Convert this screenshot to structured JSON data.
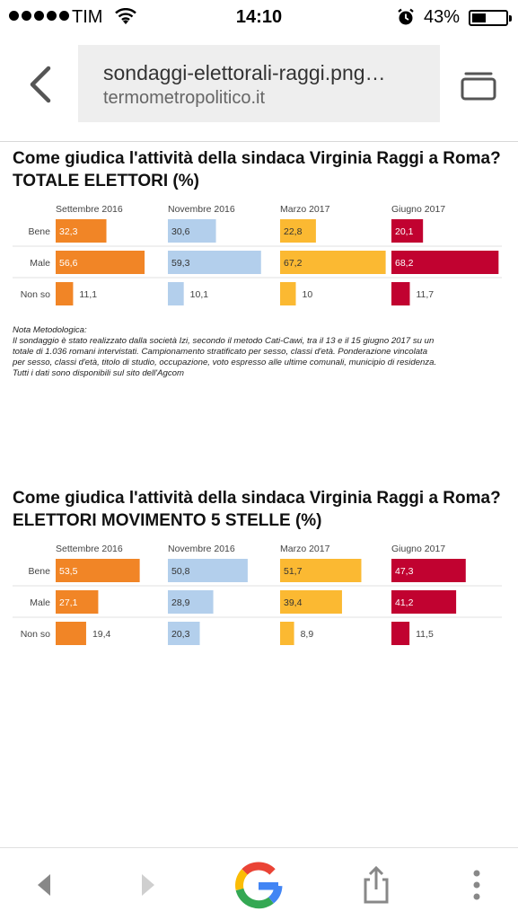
{
  "status_bar": {
    "carrier": "TIM",
    "time": "14:10",
    "battery": "43%",
    "battery_level": 0.43
  },
  "browser": {
    "url": "sondaggi-elettorali-raggi.png…",
    "host": "termometropolitico.it"
  },
  "chart_data": [
    {
      "type": "bar",
      "title": "Come giudica l'attività della sindaca Virginia Raggi a Roma?",
      "subtitle": "TOTALE ELETTORI (%)",
      "categories": [
        "Bene",
        "Male",
        "Non so"
      ],
      "series": [
        {
          "name": "Settembre 2016",
          "color": "#f18526",
          "values": [
            32.3,
            56.6,
            11.1
          ],
          "labels": [
            "32,3",
            "56,6",
            "11,1"
          ]
        },
        {
          "name": "Novembre 2016",
          "color": "#b3cfec",
          "values": [
            30.6,
            59.3,
            10.1
          ],
          "labels": [
            "30,6",
            "59,3",
            "10,1"
          ]
        },
        {
          "name": "Marzo 2017",
          "color": "#fbb932",
          "values": [
            22.8,
            67.2,
            10
          ],
          "labels": [
            "22,8",
            "67,2",
            "10"
          ]
        },
        {
          "name": "Giugno 2017",
          "color": "#c10230",
          "values": [
            20.1,
            68.2,
            11.7
          ],
          "labels": [
            "20,1",
            "68,2",
            "11,7"
          ]
        }
      ]
    },
    {
      "type": "bar",
      "title": "Come giudica l'attività della sindaca Virginia Raggi a Roma?",
      "subtitle": "ELETTORI MOVIMENTO 5 STELLE (%)",
      "categories": [
        "Bene",
        "Male",
        "Non so"
      ],
      "series": [
        {
          "name": "Settembre 2016",
          "color": "#f18526",
          "values": [
            53.5,
            27.1,
            19.4
          ],
          "labels": [
            "53,5",
            "27,1",
            "19,4"
          ]
        },
        {
          "name": "Novembre 2016",
          "color": "#b3cfec",
          "values": [
            50.8,
            28.9,
            20.3
          ],
          "labels": [
            "50,8",
            "28,9",
            "20,3"
          ]
        },
        {
          "name": "Marzo 2017",
          "color": "#fbb932",
          "values": [
            51.7,
            39.4,
            8.9
          ],
          "labels": [
            "51,7",
            "39,4",
            "8,9"
          ]
        },
        {
          "name": "Giugno 2017",
          "color": "#c10230",
          "values": [
            47.3,
            41.2,
            11.5
          ],
          "labels": [
            "47,3",
            "41,2",
            "11,5"
          ]
        }
      ]
    }
  ],
  "note": {
    "title": "Nota Metodologica:",
    "lines": [
      "Il sondaggio è stato realizzato dalla società Izi, secondo il metodo Cati-Cawi, tra il 13 e il 15 giugno 2017 su un",
      "totale di 1.036 romani intervistati. Campionamento stratificato per sesso, classi d'età. Ponderazione vincolata",
      "per sesso, classi d'età, titolo di studio, occupazione, voto espresso alle ultime comunali, municipio di residenza.",
      "Tutti i dati sono disponibili sul sito dell'Agcom"
    ]
  },
  "colors": {
    "orange": "#f18526",
    "light_blue": "#b3cfec",
    "yellow": "#fbb932",
    "red": "#c10230"
  }
}
